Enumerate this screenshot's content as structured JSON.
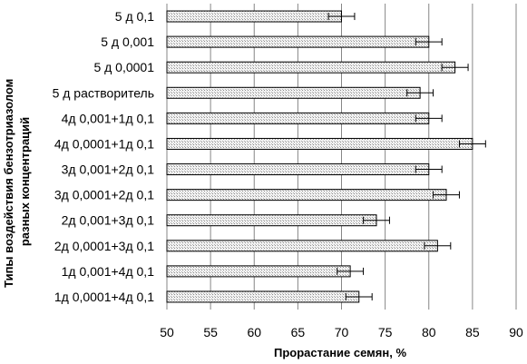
{
  "chart_data": {
    "type": "bar",
    "orientation": "horizontal",
    "categories": [
      "5 д 0,1",
      "5 д 0,001",
      "5 д 0,0001",
      "5 д растворитель",
      "4д 0,001+1д 0,1",
      "4д 0,0001+1д 0,1",
      "3д 0,001+2д 0,1",
      "3д 0,0001+2д 0,1",
      "2д 0,001+3д 0,1",
      "2д 0,0001+3д 0,1",
      "1д 0,001+4д 0,1",
      "1д 0,0001+4д 0,1"
    ],
    "values": [
      70,
      80,
      83,
      79,
      80,
      85,
      80,
      82,
      74,
      81,
      71,
      72
    ],
    "errors": [
      1.5,
      1.5,
      1.5,
      1.5,
      1.5,
      1.5,
      1.5,
      1.5,
      1.5,
      1.5,
      1.5,
      1.5
    ],
    "xlabel": "Прорастание  семян,  %",
    "ylabel_lines": [
      "Типы воздействия бензотриазолом",
      "разных  концентраций"
    ],
    "xlim": [
      50,
      90
    ],
    "xticks": [
      50,
      55,
      60,
      65,
      70,
      75,
      80,
      85,
      90
    ],
    "grid": "vertical",
    "bar_fill": "crosshatch-grey",
    "bar_stroke": "#000000",
    "grid_color": "#868686"
  }
}
